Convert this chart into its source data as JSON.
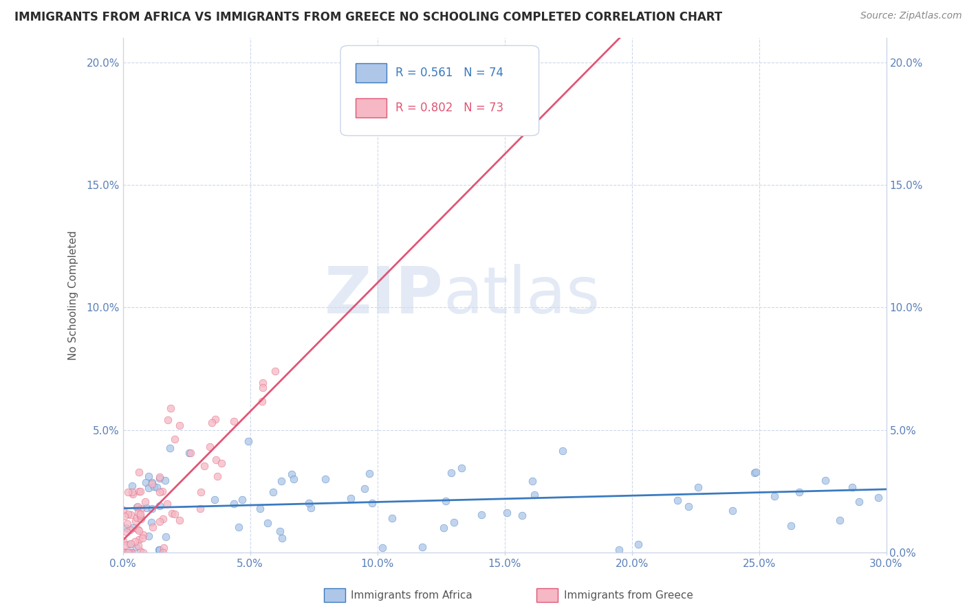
{
  "title": "IMMIGRANTS FROM AFRICA VS IMMIGRANTS FROM GREECE NO SCHOOLING COMPLETED CORRELATION CHART",
  "source": "Source: ZipAtlas.com",
  "ylabel": "No Schooling Completed",
  "xlim": [
    0.0,
    0.3
  ],
  "ylim": [
    0.0,
    0.21
  ],
  "xticks": [
    0.0,
    0.05,
    0.1,
    0.15,
    0.2,
    0.25,
    0.3
  ],
  "xtick_labels": [
    "0.0%",
    "5.0%",
    "10.0%",
    "15.0%",
    "20.0%",
    "25.0%",
    "30.0%"
  ],
  "yticks": [
    0.0,
    0.05,
    0.1,
    0.15,
    0.2
  ],
  "ytick_labels": [
    "",
    "5.0%",
    "10.0%",
    "15.0%",
    "20.0%"
  ],
  "ytick_labels_right": [
    "0.0%",
    "5.0%",
    "10.0%",
    "15.0%",
    "20.0%"
  ],
  "color_africa": "#aec6e8",
  "color_greece": "#f5b8c4",
  "trendline_africa_color": "#3a7abf",
  "trendline_greece_color": "#e05575",
  "R_africa": 0.561,
  "N_africa": 74,
  "R_greece": 0.802,
  "N_greece": 73,
  "watermark_zip": "ZIP",
  "watermark_atlas": "atlas",
  "background_color": "#ffffff",
  "grid_color": "#c8d4e8",
  "title_color": "#2b2b2b",
  "source_color": "#888888",
  "tick_color": "#5a80b8",
  "ylabel_color": "#555555",
  "legend_border_color": "#c8d4e8",
  "africa_trendline_slope": 0.026,
  "africa_trendline_intercept": 0.018,
  "greece_trendline_slope": 1.05,
  "greece_trendline_intercept": 0.005
}
